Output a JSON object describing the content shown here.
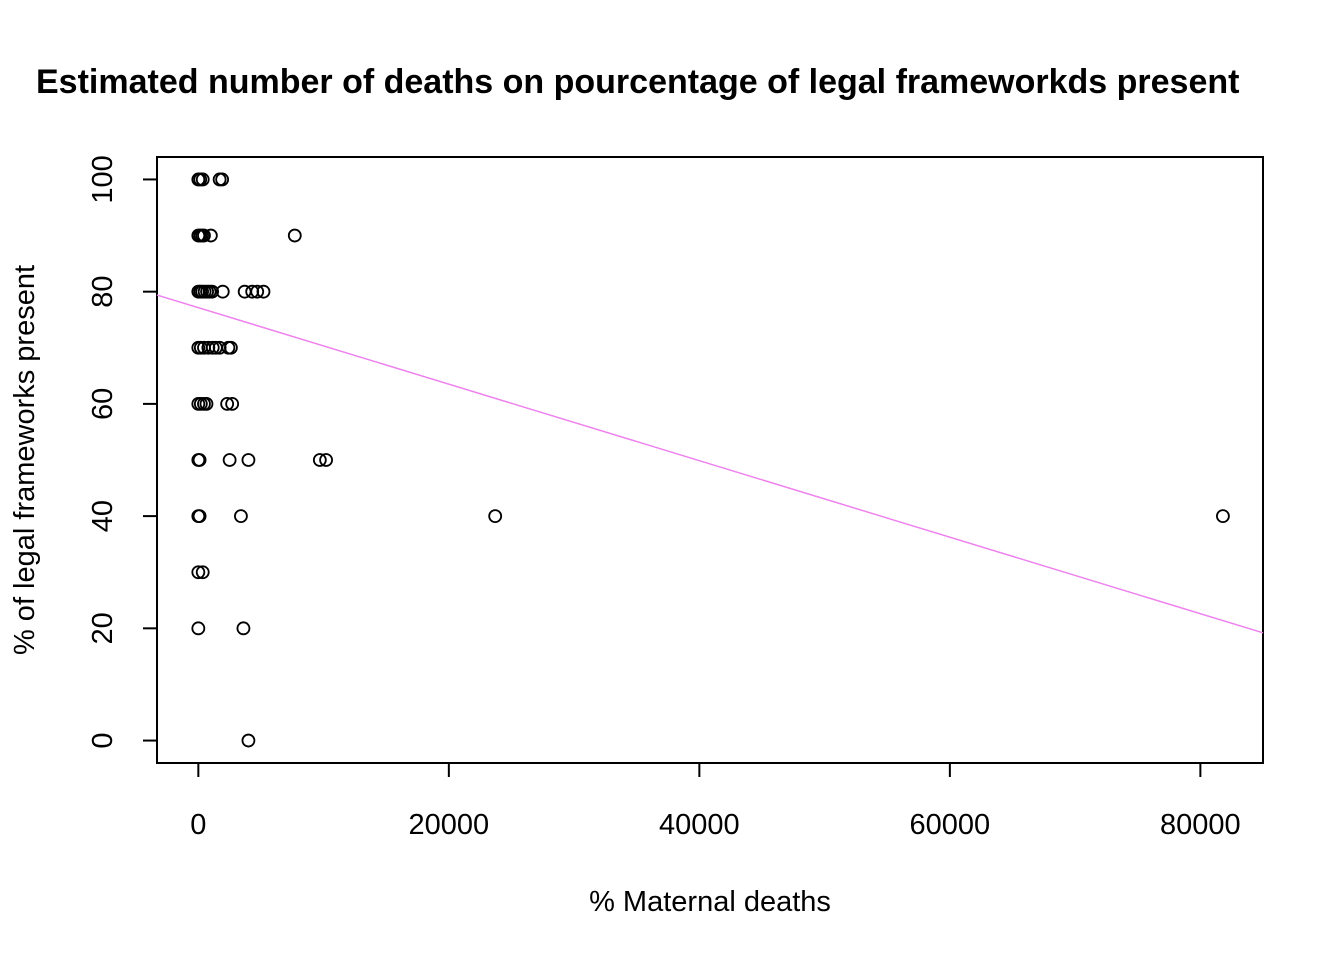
{
  "chart_data": {
    "type": "scatter",
    "title": "Estimated number of deaths on pourcentage of legal frameworkds present",
    "xlabel": "% Maternal deaths",
    "ylabel": "% of legal frameworks present",
    "xlim": [
      -3300,
      85000
    ],
    "ylim": [
      -4,
      104
    ],
    "x_ticks": [
      0,
      20000,
      40000,
      60000,
      80000
    ],
    "x_tick_labels": [
      "0",
      "20000",
      "40000",
      "60000",
      "80000"
    ],
    "y_ticks": [
      0,
      20,
      40,
      60,
      80,
      100
    ],
    "y_tick_labels": [
      "0",
      "20",
      "40",
      "60",
      "80",
      "100"
    ],
    "grid": false,
    "points": [
      {
        "x": 0,
        "y": 100
      },
      {
        "x": 150,
        "y": 100
      },
      {
        "x": 350,
        "y": 100
      },
      {
        "x": 1700,
        "y": 100
      },
      {
        "x": 1900,
        "y": 100
      },
      {
        "x": 0,
        "y": 90
      },
      {
        "x": 150,
        "y": 90
      },
      {
        "x": 300,
        "y": 90
      },
      {
        "x": 450,
        "y": 90
      },
      {
        "x": 1000,
        "y": 90
      },
      {
        "x": 7700,
        "y": 90
      },
      {
        "x": 0,
        "y": 80
      },
      {
        "x": 150,
        "y": 80
      },
      {
        "x": 300,
        "y": 80
      },
      {
        "x": 500,
        "y": 80
      },
      {
        "x": 700,
        "y": 80
      },
      {
        "x": 900,
        "y": 80
      },
      {
        "x": 1100,
        "y": 80
      },
      {
        "x": 1950,
        "y": 80
      },
      {
        "x": 3700,
        "y": 80
      },
      {
        "x": 4300,
        "y": 80
      },
      {
        "x": 4700,
        "y": 80
      },
      {
        "x": 5200,
        "y": 80
      },
      {
        "x": 0,
        "y": 70
      },
      {
        "x": 200,
        "y": 70
      },
      {
        "x": 450,
        "y": 70
      },
      {
        "x": 800,
        "y": 70
      },
      {
        "x": 1150,
        "y": 70
      },
      {
        "x": 1400,
        "y": 70
      },
      {
        "x": 1700,
        "y": 70
      },
      {
        "x": 2400,
        "y": 70
      },
      {
        "x": 2600,
        "y": 70
      },
      {
        "x": 0,
        "y": 60
      },
      {
        "x": 200,
        "y": 60
      },
      {
        "x": 450,
        "y": 60
      },
      {
        "x": 650,
        "y": 60
      },
      {
        "x": 2300,
        "y": 60
      },
      {
        "x": 2700,
        "y": 60
      },
      {
        "x": 0,
        "y": 50
      },
      {
        "x": 100,
        "y": 50
      },
      {
        "x": 2500,
        "y": 50
      },
      {
        "x": 4000,
        "y": 50
      },
      {
        "x": 9700,
        "y": 50
      },
      {
        "x": 10200,
        "y": 50
      },
      {
        "x": 0,
        "y": 40
      },
      {
        "x": 100,
        "y": 40
      },
      {
        "x": 3400,
        "y": 40
      },
      {
        "x": 23700,
        "y": 40
      },
      {
        "x": 81800,
        "y": 40
      },
      {
        "x": 0,
        "y": 30
      },
      {
        "x": 350,
        "y": 30
      },
      {
        "x": 0,
        "y": 20
      },
      {
        "x": 3600,
        "y": 20
      },
      {
        "x": 4000,
        "y": 0
      }
    ],
    "regression_line": {
      "x": [
        -3300,
        85000
      ],
      "y": [
        79.4,
        19.2
      ],
      "color": "#EE82EE"
    },
    "point_color": "#000000"
  }
}
